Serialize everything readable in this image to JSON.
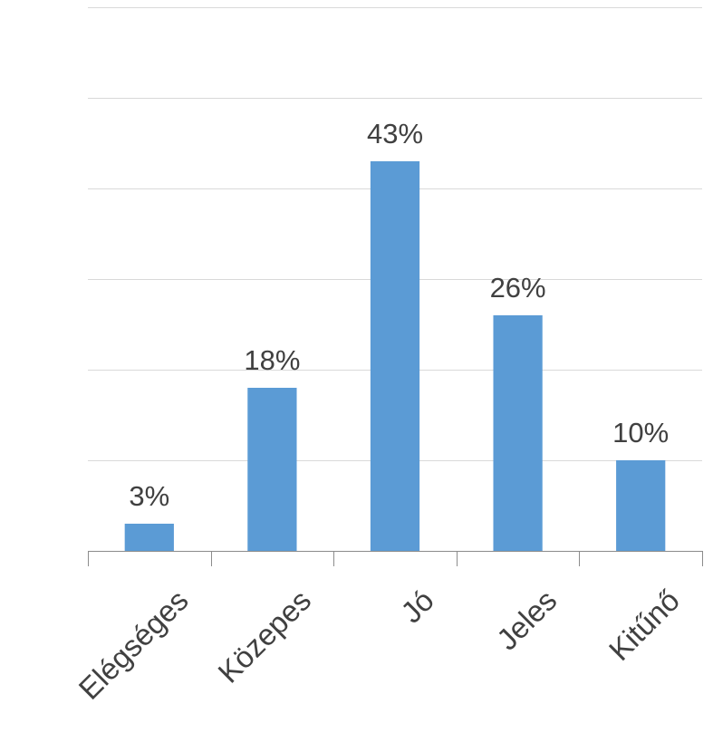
{
  "chart_data": {
    "type": "bar",
    "categories": [
      "Elégséges",
      "Közepes",
      "Jó",
      "Jeles",
      "Kitűnő"
    ],
    "values": [
      3,
      18,
      43,
      26,
      10
    ],
    "data_labels": [
      "3%",
      "18%",
      "43%",
      "26%",
      "10%"
    ],
    "ylim": [
      0,
      60
    ],
    "grid": true,
    "colors": {
      "bar": "#5B9BD5",
      "grid": "#D9D9D9",
      "axis": "#8C8C8C",
      "text": "#404040"
    }
  }
}
